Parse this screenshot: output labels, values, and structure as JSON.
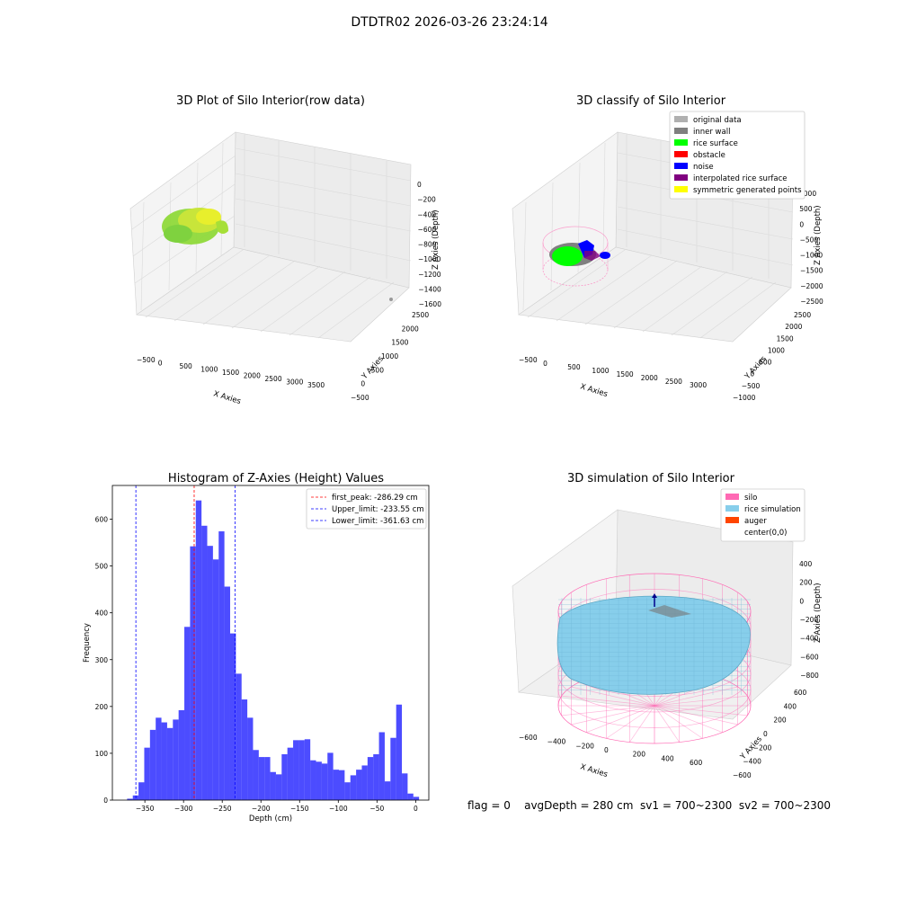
{
  "suptitle": "DTDTR02 2026-03-26 23:24:14",
  "status_line": "flag = 0    avgDepth = 280 cm  sv1 = 700~2300  sv2 = 700~2300",
  "panels": {
    "raw": {
      "title": "3D Plot of Silo Interior(row data)",
      "xlabel": "X Axies",
      "ylabel": "Y Axies",
      "zlabel": "Z Axies (Depth)",
      "xticks": [
        "−500",
        "0",
        "500",
        "1000",
        "1500",
        "2000",
        "2500",
        "3000",
        "3500"
      ],
      "yticks": [
        "−500",
        "0",
        "500",
        "1000",
        "1500",
        "2000",
        "2500"
      ],
      "zticks": [
        "0",
        "−200",
        "−400",
        "−600",
        "−800",
        "−1000",
        "−1200",
        "−1400",
        "−1600"
      ]
    },
    "classify": {
      "title": "3D classify of Silo Interior",
      "xlabel": "X Axies",
      "ylabel": "Y Axies",
      "zlabel": "Z Axies (Depth)",
      "xticks": [
        "−500",
        "0",
        "500",
        "1000",
        "1500",
        "2000",
        "2500",
        "3000"
      ],
      "yticks": [
        "−1000",
        "−500",
        "0",
        "500",
        "1000",
        "1500",
        "2000",
        "2500"
      ],
      "zticks": [
        "1000",
        "500",
        "0",
        "−500",
        "−1000",
        "−1500",
        "−2000",
        "−2500"
      ],
      "legend": [
        {
          "label": "original data",
          "color": "#b0b0b0"
        },
        {
          "label": "inner wall",
          "color": "#808080"
        },
        {
          "label": "rice surface",
          "color": "#00ff00"
        },
        {
          "label": "obstacle",
          "color": "#ff0000"
        },
        {
          "label": "noise",
          "color": "#0000ff"
        },
        {
          "label": "interpolated rice surface",
          "color": "#800080"
        },
        {
          "label": "symmetric generated points",
          "color": "#ffff00"
        }
      ]
    },
    "simulation": {
      "title": "3D simulation of Silo Interior",
      "xlabel": "X Axies",
      "ylabel": "Y Axies",
      "zlabel": "Z Axies (Depth)",
      "xticks": [
        "−600",
        "−400",
        "−200",
        "0",
        "200",
        "400",
        "600"
      ],
      "yticks": [
        "−600",
        "−400",
        "−200",
        "0",
        "200",
        "400",
        "600"
      ],
      "zticks": [
        "400",
        "200",
        "0",
        "−200",
        "−400",
        "−600",
        "−800"
      ],
      "legend": [
        {
          "label": "silo",
          "color": "#ff69b4"
        },
        {
          "label": "rice simulation",
          "color": "#87ceeb"
        },
        {
          "label": "auger",
          "color": "#ff4500"
        },
        {
          "label": "center(0,0)",
          "color": "#ffffff"
        }
      ]
    }
  },
  "chart_data": {
    "type": "bar",
    "title": "Histogram of Z-Axies (Height) Values",
    "xlabel": "Depth (cm)",
    "ylabel": "Frequency",
    "xlim": [
      -392,
      17
    ],
    "ylim": [
      0,
      672
    ],
    "xticks": [
      -350,
      -300,
      -250,
      -200,
      -150,
      -100,
      -50,
      0
    ],
    "yticks": [
      0,
      100,
      200,
      300,
      400,
      500,
      600
    ],
    "bar_color": "#0000ff",
    "bin_start": -373,
    "bin_width": 7.4,
    "values": [
      3,
      10,
      38,
      112,
      150,
      176,
      166,
      154,
      172,
      192,
      370,
      542,
      640,
      586,
      543,
      514,
      574,
      456,
      356,
      270,
      215,
      176,
      107,
      92,
      92,
      60,
      55,
      98,
      112,
      128,
      128,
      130,
      85,
      82,
      78,
      101,
      65,
      64,
      38,
      53,
      65,
      74,
      92,
      98,
      145,
      40,
      133,
      204,
      57,
      14,
      7
    ],
    "lines": [
      {
        "label": "first_peak: -286.29 cm",
        "x": -286.29,
        "color": "#ff0000"
      },
      {
        "label": "Upper_limit: -233.55 cm",
        "x": -233.55,
        "color": "#0000ff"
      },
      {
        "label": "Lower_limit: -361.63 cm",
        "x": -361.63,
        "color": "#0000ff"
      }
    ],
    "legend_position": "top-right"
  }
}
